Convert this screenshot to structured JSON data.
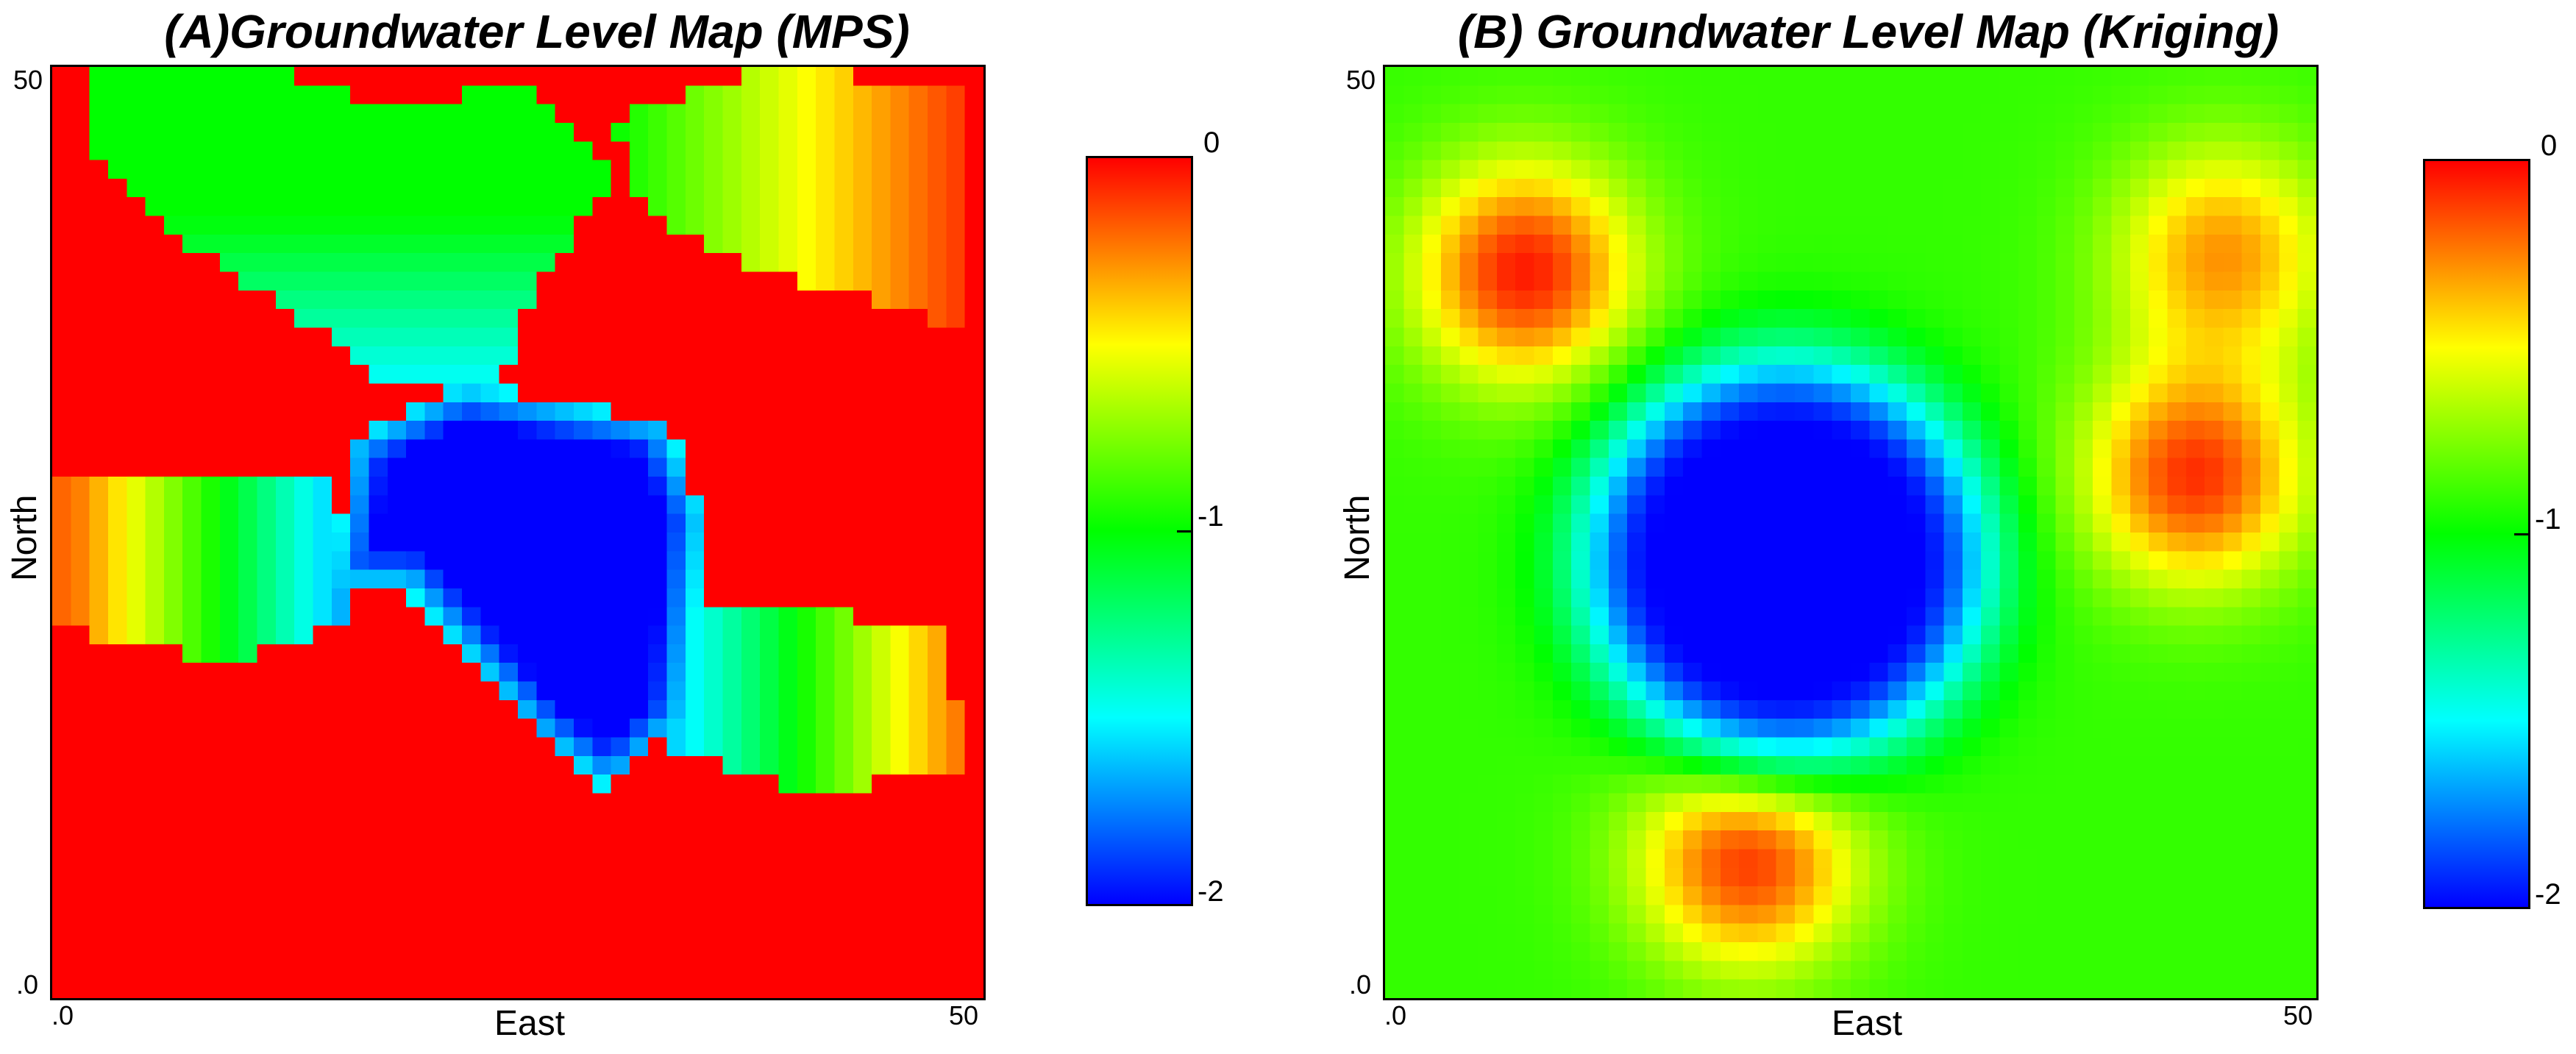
{
  "chart_data": [
    {
      "type": "heatmap",
      "title": "(A)Groundwater Level Map (MPS)",
      "xlabel": "East",
      "ylabel": "North",
      "x_tick_labels": [
        ".0",
        "50"
      ],
      "y_tick_labels": [
        ".0",
        "50"
      ],
      "xlim": [
        0,
        50
      ],
      "ylim": [
        0,
        50
      ],
      "colorbar": {
        "ticks": [
          "0",
          "-1",
          "-2"
        ],
        "range": [
          -2,
          0
        ],
        "colors": [
          "#0000ff",
          "#00ffff",
          "#00ff00",
          "#ffff00",
          "#ff0000"
        ]
      },
      "grid_cells": [
        50,
        50
      ],
      "description_zones": [
        {
          "region": "central basin",
          "value": -2.0
        },
        {
          "region": "north-central channel",
          "value": -1.0
        },
        {
          "region": "west band",
          "value": -1.0
        },
        {
          "region": "east band",
          "value": -1.2
        },
        {
          "region": "background",
          "value": 0.0
        }
      ]
    },
    {
      "type": "heatmap",
      "title": "(B) Groundwater Level Map (Kriging)",
      "xlabel": "East",
      "ylabel": "North",
      "x_tick_labels": [
        ".0",
        "50"
      ],
      "y_tick_labels": [
        ".0",
        "50"
      ],
      "xlim": [
        0,
        50
      ],
      "ylim": [
        0,
        50
      ],
      "colorbar": {
        "ticks": [
          "0",
          "-1",
          "-2"
        ],
        "range": [
          -2,
          0
        ],
        "colors": [
          "#0000ff",
          "#00ffff",
          "#00ff00",
          "#ffff00",
          "#ff0000"
        ]
      },
      "grid_cells": [
        50,
        50
      ],
      "peaks": [
        {
          "x": 7.5,
          "y": 39,
          "value": -0.05
        },
        {
          "x": 19.5,
          "y": 7.5,
          "value": -0.1
        },
        {
          "x": 43.5,
          "y": 28,
          "value": -0.1
        },
        {
          "x": 45,
          "y": 40,
          "value": -0.3
        }
      ],
      "trough": {
        "x": 21.5,
        "y": 23.5,
        "value": -2.0
      },
      "background_value": -0.9
    }
  ]
}
